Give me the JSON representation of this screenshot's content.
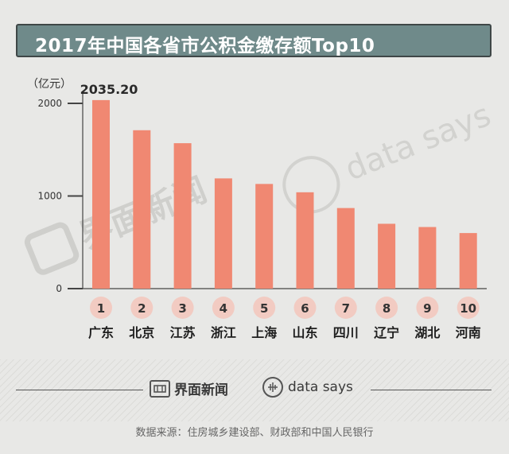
{
  "title": "2017年中国各省市公积金缴存额Top10",
  "chart_data": {
    "type": "bar",
    "title": "2017年中国各省市公积金缴存额Top10",
    "ylabel": "（亿元）",
    "ylim": [
      0,
      2000
    ],
    "yticks": [
      0,
      1000,
      2000
    ],
    "categories": [
      "广东",
      "北京",
      "江苏",
      "浙江",
      "上海",
      "山东",
      "四川",
      "辽宁",
      "湖北",
      "河南"
    ],
    "ranks": [
      "1",
      "2",
      "3",
      "4",
      "5",
      "6",
      "7",
      "8",
      "9",
      "10"
    ],
    "values": [
      2035.2,
      1710,
      1570,
      1190,
      1130,
      1040,
      870,
      700,
      665,
      600
    ],
    "value_labels": [
      {
        "index": 0,
        "text": "2035.20"
      }
    ],
    "bar_color": "#f08872",
    "rank_circle_color": "#f2cbc2"
  },
  "watermarks": {
    "jiemian": "界面新闻",
    "datasays": "data says"
  },
  "footer": {
    "brand_cn": "界面新闻",
    "brand_en": "data says",
    "source": "数据来源：住房城乡建设部、财政部和中国人民银行"
  }
}
